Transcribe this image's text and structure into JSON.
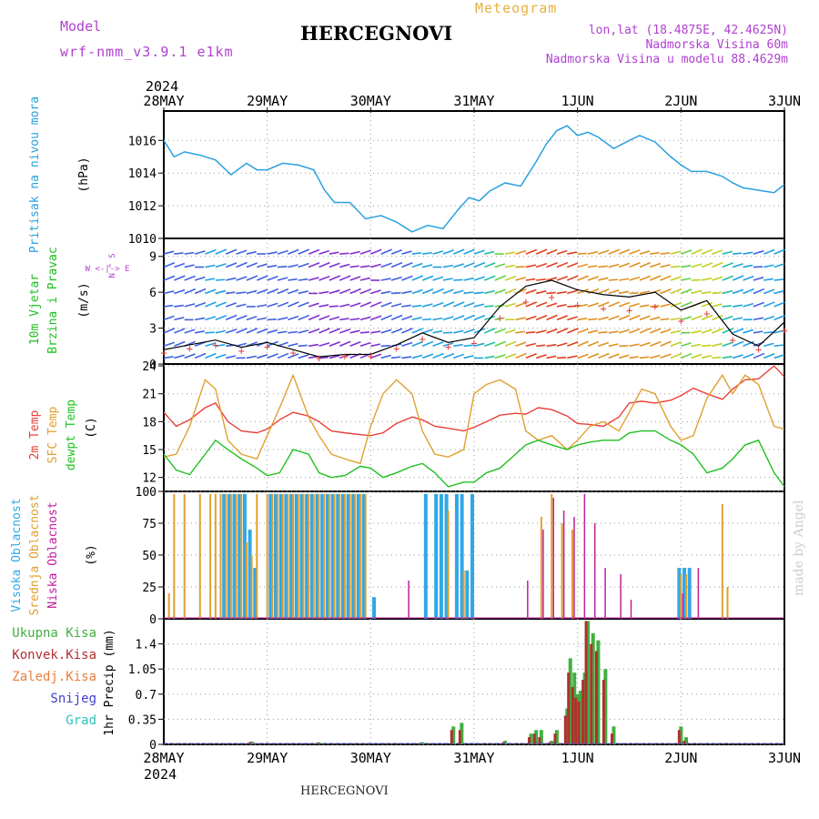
{
  "header": {
    "model_label": "Model",
    "model_name": "wrf-nmm_v3.9.1 e1km",
    "station_title": "HERCEGNOVI",
    "product_label": "Meteogram",
    "coords": "lon,lat (18.4875E, 42.4625N)",
    "elevation": "Nadmorska Visina 60m",
    "model_elevation": "Nadmorska Visina u modelu 88.4629m",
    "footer_station": "HERCEGNOVI",
    "credit": "made by Angel"
  },
  "time_axis": {
    "year": "2024",
    "dates": [
      "28MAY",
      "29MAY",
      "30MAY",
      "31MAY",
      "1JUN",
      "2JUN",
      "3JUN"
    ]
  },
  "colors": {
    "pressure": "#2aa0e0",
    "temp2m": "#e8403a",
    "sfc_temp": "#e0a030",
    "dewpoint": "#20c020",
    "cloud_high": "#30a8e8",
    "cloud_mid": "#e0a030",
    "cloud_low": "#c020a0",
    "precip_total": "#40b040",
    "precip_conv": "#b03030",
    "title_magenta": "#b040d0",
    "meteogram_orange": "#e8b040"
  },
  "chart_data": [
    {
      "type": "line",
      "panel": "pressure",
      "ylabel": "Pritisak na nivou mora",
      "unit": "(hPa)",
      "yticks": [
        "1016",
        "1014",
        "1012",
        "1010"
      ],
      "ylim": [
        1010,
        1017.8
      ],
      "x_days": [
        0,
        0.1,
        0.2,
        0.35,
        0.5,
        0.65,
        0.8,
        0.9,
        1.0,
        1.15,
        1.3,
        1.45,
        1.55,
        1.65,
        1.8,
        1.95,
        2.1,
        2.25,
        2.4,
        2.55,
        2.7,
        2.85,
        2.95,
        3.05,
        3.15,
        3.3,
        3.45,
        3.6,
        3.7,
        3.8,
        3.9,
        4.0,
        4.1,
        4.2,
        4.35,
        4.5,
        4.6,
        4.75,
        4.9,
        5.0,
        5.1,
        5.25,
        5.4,
        5.5,
        5.6,
        5.7,
        5.8,
        5.9,
        6.0
      ],
      "series": [
        {
          "values": [
            1016.0,
            1015.0,
            1015.3,
            1015.1,
            1014.8,
            1013.9,
            1014.6,
            1014.2,
            1014.2,
            1014.6,
            1014.5,
            1014.2,
            1013.0,
            1012.2,
            1012.2,
            1011.2,
            1011.4,
            1011.0,
            1010.4,
            1010.8,
            1010.6,
            1011.8,
            1012.5,
            1012.3,
            1012.9,
            1013.4,
            1013.2,
            1014.7,
            1015.8,
            1016.6,
            1016.9,
            1016.3,
            1016.5,
            1016.2,
            1015.5,
            1016.0,
            1016.3,
            1015.9,
            1015.0,
            1014.5,
            1014.1,
            1014.1,
            1013.8,
            1013.4,
            1013.1,
            1013.0,
            1012.9,
            1012.8,
            1013.3
          ]
        }
      ]
    },
    {
      "type": "scatter",
      "panel": "wind",
      "ylabel": "10m Vjetar",
      "ylabel2": "Brzina i Pravac",
      "unit": "(m/s)",
      "compass": "W <-|-> E",
      "compass_ns": "N ^ S",
      "yticks": [
        "9",
        "6",
        "3",
        "0"
      ],
      "ylim": [
        0,
        10.5
      ],
      "x_days": [
        0,
        0.25,
        0.5,
        0.75,
        1.0,
        1.25,
        1.5,
        1.75,
        2.0,
        2.25,
        2.5,
        2.75,
        3.0,
        3.25,
        3.5,
        3.75,
        4.0,
        4.25,
        4.5,
        4.75,
        5.0,
        5.25,
        5.5,
        5.75,
        6.0
      ],
      "series": [
        {
          "name": "speed",
          "values": [
            1.2,
            1.6,
            2.0,
            1.4,
            1.8,
            1.2,
            0.6,
            0.8,
            0.8,
            1.6,
            2.6,
            1.8,
            2.2,
            4.8,
            6.5,
            7.0,
            6.2,
            5.8,
            5.6,
            6.0,
            4.5,
            5.3,
            2.5,
            1.5,
            3.5
          ]
        }
      ]
    },
    {
      "type": "line",
      "panel": "temperature",
      "ylabel": "2m Temp",
      "ylabel2": "SFC Temp",
      "ylabel3": "dewpt Temp",
      "unit": "(C)",
      "yticks": [
        "24",
        "21",
        "18",
        "15",
        "12"
      ],
      "ylim": [
        10.5,
        24.2
      ],
      "x_days": [
        0,
        0.12,
        0.25,
        0.4,
        0.5,
        0.62,
        0.75,
        0.9,
        1.0,
        1.12,
        1.25,
        1.4,
        1.5,
        1.62,
        1.75,
        1.9,
        2.0,
        2.12,
        2.25,
        2.4,
        2.5,
        2.62,
        2.75,
        2.9,
        3.0,
        3.12,
        3.25,
        3.4,
        3.5,
        3.62,
        3.75,
        3.9,
        4.0,
        4.12,
        4.25,
        4.4,
        4.5,
        4.62,
        4.75,
        4.9,
        5.0,
        5.12,
        5.25,
        5.4,
        5.5,
        5.62,
        5.75,
        5.9,
        6.0
      ],
      "series": [
        {
          "name": "2m Temp",
          "values": [
            19.0,
            17.5,
            18.2,
            19.5,
            20.0,
            18.0,
            17.0,
            16.8,
            17.2,
            18.2,
            19.0,
            18.6,
            18.0,
            17.0,
            16.8,
            16.6,
            16.5,
            16.8,
            17.8,
            18.5,
            18.2,
            17.5,
            17.3,
            17.0,
            17.4,
            18.0,
            18.7,
            18.9,
            18.8,
            19.5,
            19.3,
            18.6,
            17.8,
            17.7,
            17.5,
            18.5,
            20.0,
            20.2,
            20.0,
            20.3,
            20.8,
            21.6,
            21.0,
            20.4,
            21.5,
            22.5,
            22.6,
            24.0,
            22.8
          ]
        },
        {
          "name": "SFC Temp",
          "values": [
            14.2,
            14.5,
            17.5,
            22.5,
            21.5,
            16.0,
            14.5,
            14.0,
            16.5,
            19.5,
            23.0,
            18.5,
            16.5,
            14.5,
            14.0,
            13.5,
            17.5,
            21.0,
            22.5,
            21.0,
            17.0,
            14.5,
            14.2,
            15.0,
            21.0,
            22.0,
            22.5,
            21.5,
            17.0,
            16.0,
            16.5,
            15.0,
            16.0,
            17.5,
            18.0,
            17.0,
            19.0,
            21.5,
            21.0,
            17.5,
            16.0,
            16.5,
            20.5,
            23.0,
            21.0,
            23.0,
            22.0,
            17.5,
            17.2
          ]
        },
        {
          "name": "dewpt Temp",
          "values": [
            14.5,
            12.8,
            12.3,
            14.5,
            16.0,
            15.0,
            14.0,
            13.0,
            12.2,
            12.5,
            15.0,
            14.5,
            12.5,
            12.0,
            12.2,
            13.2,
            13.0,
            12.0,
            12.5,
            13.2,
            13.5,
            12.5,
            11.0,
            11.5,
            11.5,
            12.5,
            13.0,
            14.5,
            15.5,
            16.0,
            15.5,
            15.0,
            15.5,
            15.8,
            16.0,
            16.0,
            16.8,
            17.0,
            17.0,
            16.0,
            15.5,
            14.5,
            12.5,
            13.0,
            14.0,
            15.5,
            16.0,
            12.5,
            11.0
          ]
        }
      ]
    },
    {
      "type": "bar",
      "panel": "clouds",
      "ylabel": "Visoka Oblacnost",
      "ylabel2": "Srednja Oblacnost",
      "ylabel3": "Niska Oblacnost",
      "unit": "(%)",
      "yticks": [
        "100",
        "75",
        "50",
        "25",
        "0"
      ],
      "ylim": [
        0,
        100
      ],
      "x_days": [
        0.05,
        0.1,
        0.2,
        0.35,
        0.45,
        0.5,
        0.55,
        0.6,
        0.65,
        0.7,
        0.75,
        0.8,
        0.85,
        0.9,
        1.0,
        1.05,
        1.1,
        1.15,
        1.2,
        1.25,
        1.3,
        1.35,
        1.4,
        1.45,
        1.5,
        1.55,
        1.6,
        1.65,
        1.7,
        1.75,
        1.8,
        1.85,
        1.9,
        1.95,
        2.05,
        2.35,
        2.55,
        2.65,
        2.7,
        2.75,
        2.85,
        2.9,
        2.95,
        3.0,
        3.5,
        3.6,
        3.65,
        3.75,
        3.85,
        3.95,
        4.05,
        4.15,
        4.25,
        4.4,
        4.5,
        5.0,
        5.05,
        5.1,
        5.15,
        5.3,
        5.4,
        5.45,
        5.6
      ],
      "series": [
        {
          "name": "Visoka Oblacnost",
          "values": [
            0,
            0,
            0,
            0,
            0,
            0,
            0,
            98,
            98,
            98,
            98,
            98,
            70,
            40,
            0,
            98,
            98,
            98,
            98,
            98,
            98,
            98,
            98,
            98,
            98,
            98,
            98,
            98,
            98,
            98,
            98,
            98,
            98,
            98,
            17,
            0,
            98,
            98,
            98,
            98,
            98,
            98,
            38,
            98,
            0,
            0,
            0,
            0,
            0,
            0,
            0,
            0,
            0,
            0,
            0,
            40,
            40,
            40,
            0,
            0,
            0,
            0,
            0
          ]
        },
        {
          "name": "Srednja Oblacnost",
          "values": [
            20,
            98,
            98,
            98,
            98,
            98,
            98,
            98,
            98,
            98,
            98,
            60,
            50,
            98,
            98,
            98,
            98,
            98,
            98,
            98,
            98,
            98,
            98,
            98,
            98,
            98,
            98,
            98,
            98,
            98,
            98,
            98,
            98,
            98,
            0,
            0,
            0,
            0,
            0,
            85,
            0,
            38,
            0,
            0,
            0,
            0,
            80,
            98,
            75,
            70,
            0,
            0,
            0,
            0,
            0,
            35,
            35,
            0,
            0,
            0,
            90,
            25,
            0
          ]
        },
        {
          "name": "Niska Oblacnost",
          "values": [
            0,
            0,
            0,
            0,
            0,
            0,
            0,
            0,
            0,
            0,
            0,
            0,
            0,
            0,
            0,
            0,
            0,
            0,
            0,
            0,
            0,
            0,
            0,
            0,
            0,
            0,
            0,
            0,
            0,
            0,
            0,
            0,
            0,
            0,
            0,
            30,
            0,
            0,
            0,
            0,
            0,
            0,
            0,
            0,
            30,
            0,
            70,
            95,
            85,
            80,
            98,
            75,
            40,
            35,
            15,
            20,
            0,
            0,
            40,
            0,
            0,
            0,
            0
          ]
        }
      ]
    },
    {
      "type": "bar",
      "panel": "precipitation",
      "ylabel": "1hr Precip",
      "unit": "(mm)",
      "legend": [
        "Ukupna Kisa",
        "Konvek.Kisa",
        "Zaledj.Kisa",
        "Snijeg",
        "Grad"
      ],
      "yticks": [
        "1.4",
        "1.05",
        "0.7",
        "0.35",
        "0"
      ],
      "ylim": [
        0,
        1.75
      ],
      "x_days": [
        0.85,
        1.5,
        2.5,
        2.8,
        2.88,
        3.3,
        3.55,
        3.6,
        3.65,
        3.75,
        3.8,
        3.9,
        3.93,
        3.97,
        4.0,
        4.03,
        4.07,
        4.1,
        4.15,
        4.2,
        4.27,
        4.35,
        5.0,
        5.05
      ],
      "series": [
        {
          "name": "Ukupna Kisa",
          "values": [
            0.04,
            0.03,
            0.03,
            0.25,
            0.3,
            0.05,
            0.15,
            0.2,
            0.2,
            0.05,
            0.2,
            0.5,
            1.2,
            1.0,
            0.7,
            0.75,
            1.0,
            1.72,
            1.55,
            1.45,
            1.05,
            0.25,
            0.25,
            0.1
          ]
        },
        {
          "name": "Konvek.Kisa",
          "values": [
            0.03,
            0.02,
            0.02,
            0.2,
            0.2,
            0.03,
            0.1,
            0.15,
            0.1,
            0.03,
            0.15,
            0.4,
            1.0,
            0.8,
            0.65,
            0.6,
            0.9,
            1.72,
            1.4,
            1.3,
            0.9,
            0.15,
            0.2,
            0.05
          ]
        }
      ]
    }
  ]
}
